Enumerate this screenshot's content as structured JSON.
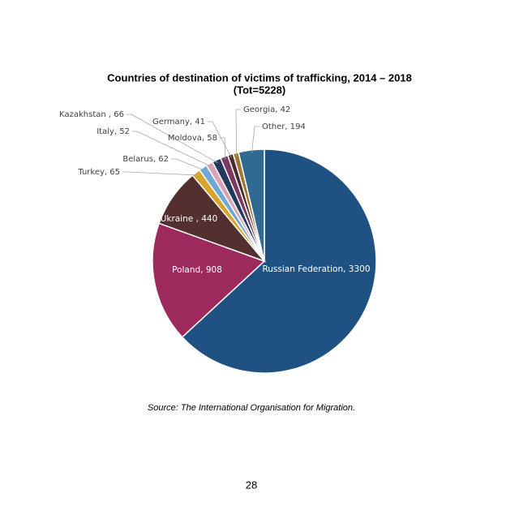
{
  "chart_data": {
    "type": "pie",
    "title": "Countries of destination of victims of trafficking, 2014 – 2018",
    "subtitle": "(Tot=5228)",
    "value_labels": [
      "Russian Federation, 3300",
      "Poland, 908",
      "Ukraine , 440",
      "Turkey, 65",
      "Belarus, 62",
      "Italy, 52",
      "Kazakhstan , 66",
      "Moldova, 58",
      "Germany, 41",
      "Georgia, 42",
      "Other, 194"
    ],
    "values": [
      3300,
      908,
      440,
      65,
      62,
      52,
      66,
      58,
      41,
      42,
      194
    ],
    "colors": [
      "#1f5283",
      "#9c2a5d",
      "#53302f",
      "#d9a42a",
      "#6fa8d6",
      "#d8a2b8",
      "#233a5e",
      "#7b3a62",
      "#4a2a2e",
      "#a0782e",
      "#2f6a93"
    ],
    "source": "Source: The International Organisation for Migration.",
    "page_number": "28"
  }
}
